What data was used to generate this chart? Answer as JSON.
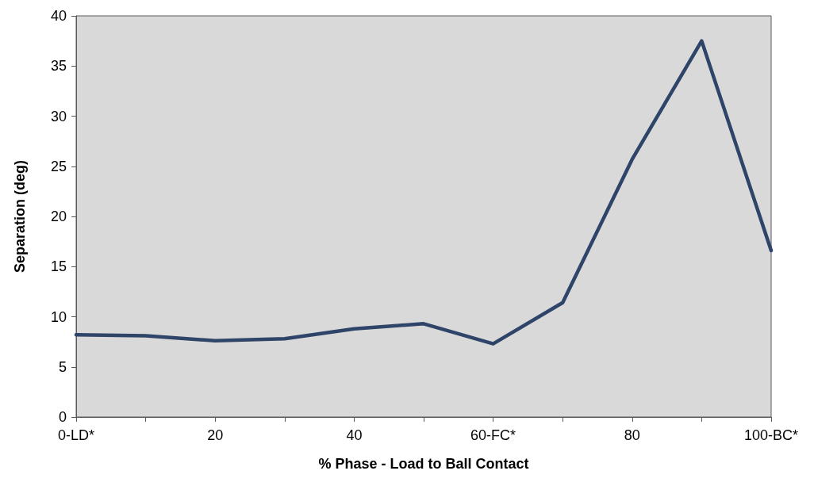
{
  "chart_data": {
    "type": "line",
    "xlabel": "% Phase - Load to Ball Contact",
    "ylabel": "Separation (deg)",
    "categories": [
      "0-LD*",
      null,
      "20",
      null,
      "40",
      null,
      "60-FC*",
      null,
      "80",
      null,
      "100-BC*"
    ],
    "series": [
      {
        "color": "#2e4468",
        "values": [
          8.2,
          8.1,
          7.6,
          7.8,
          8.8,
          9.3,
          7.3,
          11.4,
          25.7,
          37.5,
          16.6
        ]
      }
    ],
    "ylim": [
      0,
      40
    ],
    "yticks": [
      0,
      5,
      10,
      15,
      20,
      25,
      30,
      35,
      40
    ],
    "grid": false,
    "marker": "none",
    "line_style": "solid"
  }
}
